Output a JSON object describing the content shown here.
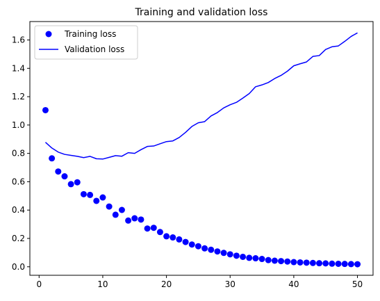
{
  "chart_data": {
    "type": "line",
    "title": "Training and validation loss",
    "xlabel": "",
    "ylabel": "",
    "xlim": [
      -1.45,
      52.45
    ],
    "ylim": [
      -0.06,
      1.73
    ],
    "x_ticks": [
      0,
      10,
      20,
      30,
      40,
      50
    ],
    "y_ticks": [
      0.0,
      0.2,
      0.4,
      0.6,
      0.8,
      1.0,
      1.2,
      1.4,
      1.6
    ],
    "y_tick_labels": [
      "0.0",
      "0.2",
      "0.4",
      "0.6",
      "0.8",
      "1.0",
      "1.2",
      "1.4",
      "1.6"
    ],
    "grid": false,
    "legend_position": "top-left",
    "epochs": [
      1,
      2,
      3,
      4,
      5,
      6,
      7,
      8,
      9,
      10,
      11,
      12,
      13,
      14,
      15,
      16,
      17,
      18,
      19,
      20,
      21,
      22,
      23,
      24,
      25,
      26,
      27,
      28,
      29,
      30,
      31,
      32,
      33,
      34,
      35,
      36,
      37,
      38,
      39,
      40,
      41,
      42,
      43,
      44,
      45,
      46,
      47,
      48,
      49,
      50
    ],
    "series": [
      {
        "name": "Training loss",
        "style": "points",
        "color": "#0000ff",
        "values": [
          1.105,
          0.765,
          0.672,
          0.638,
          0.583,
          0.596,
          0.512,
          0.507,
          0.465,
          0.489,
          0.425,
          0.367,
          0.401,
          0.326,
          0.342,
          0.333,
          0.27,
          0.275,
          0.245,
          0.215,
          0.207,
          0.193,
          0.175,
          0.157,
          0.145,
          0.13,
          0.12,
          0.108,
          0.098,
          0.088,
          0.078,
          0.07,
          0.063,
          0.06,
          0.055,
          0.047,
          0.043,
          0.04,
          0.037,
          0.033,
          0.031,
          0.029,
          0.027,
          0.025,
          0.024,
          0.022,
          0.021,
          0.02,
          0.019,
          0.018
        ]
      },
      {
        "name": "Validation loss",
        "style": "line",
        "color": "#0000ff",
        "values": [
          0.878,
          0.838,
          0.809,
          0.793,
          0.786,
          0.779,
          0.77,
          0.779,
          0.762,
          0.76,
          0.772,
          0.784,
          0.78,
          0.805,
          0.8,
          0.826,
          0.849,
          0.852,
          0.868,
          0.883,
          0.888,
          0.912,
          0.948,
          0.99,
          1.016,
          1.024,
          1.064,
          1.088,
          1.121,
          1.143,
          1.16,
          1.19,
          1.222,
          1.27,
          1.283,
          1.3,
          1.328,
          1.35,
          1.38,
          1.418,
          1.432,
          1.445,
          1.484,
          1.49,
          1.533,
          1.552,
          1.558,
          1.59,
          1.625,
          1.65
        ]
      }
    ]
  }
}
